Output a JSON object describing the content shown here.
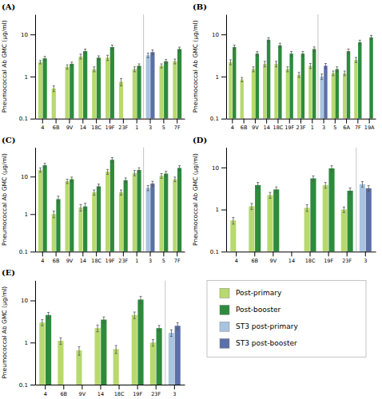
{
  "chart_data": [
    {
      "type": "bar",
      "title": "(A)",
      "ylabel": "Pneumococcal Ab GMC (μg/ml)",
      "log": "y",
      "categories": [
        "4",
        "6B",
        "9V",
        "14",
        "18C",
        "19F",
        "23F",
        "1",
        "3",
        "5",
        "7F"
      ],
      "series": [
        {
          "name": "Post-primary",
          "color": "#b8d96e",
          "values": [
            2.2,
            0.52,
            1.7,
            3.0,
            1.5,
            2.8,
            0.75,
            1.5,
            null,
            1.8,
            2.3
          ],
          "errors": [
            0.2,
            0.08,
            0.2,
            0.4,
            0.2,
            0.4,
            0.15,
            0.2,
            null,
            0.2,
            0.3
          ]
        },
        {
          "name": "Post-booster",
          "color": "#2d8b3c",
          "values": [
            2.7,
            null,
            2.0,
            4.0,
            2.8,
            5.0,
            null,
            1.8,
            null,
            2.3,
            4.5
          ],
          "errors": [
            0.3,
            null,
            0.2,
            0.5,
            0.3,
            0.6,
            null,
            0.2,
            null,
            0.25,
            0.5
          ]
        },
        {
          "name": "ST3 post-primary",
          "color": "#a8c4e0",
          "values": [
            null,
            null,
            null,
            null,
            null,
            null,
            null,
            null,
            3.2,
            null,
            null
          ],
          "errors": [
            null,
            null,
            null,
            null,
            null,
            null,
            null,
            null,
            0.4,
            null,
            null
          ]
        },
        {
          "name": "ST3 post-booster",
          "color": "#5b6fa8",
          "values": [
            null,
            null,
            null,
            null,
            null,
            null,
            null,
            null,
            3.8,
            null,
            null
          ],
          "errors": [
            null,
            null,
            null,
            null,
            null,
            null,
            null,
            null,
            0.5,
            null,
            null
          ]
        }
      ],
      "ylim": [
        0.1,
        30
      ],
      "yticks": [
        0.1,
        1,
        10
      ]
    },
    {
      "type": "bar",
      "title": "(B)",
      "ylabel": "Pneumococcal Ab GMC (μg/ml)",
      "log": "y",
      "categories": [
        "4",
        "6B",
        "9V",
        "14",
        "18C",
        "19F",
        "23F",
        "1",
        "3",
        "5",
        "6A",
        "7F",
        "19A"
      ],
      "series": [
        {
          "name": "Post-primary",
          "color": "#b8d96e",
          "values": [
            2.2,
            0.85,
            1.5,
            2.0,
            2.0,
            1.5,
            1.1,
            1.8,
            null,
            1.2,
            1.2,
            2.5,
            null
          ],
          "errors": [
            0.3,
            0.1,
            0.2,
            0.3,
            0.3,
            0.2,
            0.15,
            0.25,
            null,
            0.15,
            0.15,
            0.35,
            null
          ]
        },
        {
          "name": "Post-booster",
          "color": "#2d8b3c",
          "values": [
            5.0,
            null,
            3.5,
            7.5,
            5.5,
            3.5,
            3.5,
            4.5,
            null,
            1.5,
            4.0,
            6.5,
            8.5
          ],
          "errors": [
            0.6,
            null,
            0.4,
            0.9,
            0.7,
            0.45,
            0.45,
            0.55,
            null,
            0.2,
            0.5,
            0.8,
            1.0
          ]
        },
        {
          "name": "ST3 post-primary",
          "color": "#a8c4e0",
          "values": [
            null,
            null,
            null,
            null,
            null,
            null,
            null,
            null,
            1.0,
            null,
            null,
            null,
            null
          ],
          "errors": [
            null,
            null,
            null,
            null,
            null,
            null,
            null,
            null,
            0.15,
            null,
            null,
            null,
            null
          ]
        },
        {
          "name": "ST3 post-booster",
          "color": "#5b6fa8",
          "values": [
            null,
            null,
            null,
            null,
            null,
            null,
            null,
            null,
            1.8,
            null,
            null,
            null,
            null
          ],
          "errors": [
            null,
            null,
            null,
            null,
            null,
            null,
            null,
            null,
            0.25,
            null,
            null,
            null,
            null
          ]
        }
      ],
      "ylim": [
        0.1,
        30
      ],
      "yticks": [
        0.1,
        1,
        10
      ]
    },
    {
      "type": "bar",
      "title": "(C)",
      "ylabel": "Pneumococcal Ab GMC (μg/ml)",
      "log": "y",
      "categories": [
        "4",
        "6B",
        "9V",
        "14",
        "18C",
        "19F",
        "23F",
        "1",
        "3",
        "5",
        "7F"
      ],
      "series": [
        {
          "name": "Post-primary",
          "color": "#b8d96e",
          "values": [
            15.0,
            1.0,
            7.5,
            1.5,
            3.8,
            13.5,
            3.8,
            12.5,
            null,
            10.5,
            8.5
          ],
          "errors": [
            2.0,
            0.2,
            1.0,
            0.3,
            0.6,
            2.0,
            0.6,
            2.0,
            null,
            1.5,
            1.2
          ]
        },
        {
          "name": "Post-booster",
          "color": "#2d8b3c",
          "values": [
            20.0,
            2.5,
            8.5,
            1.6,
            5.5,
            28.0,
            8.0,
            15.0,
            null,
            12.0,
            17.0
          ],
          "errors": [
            2.5,
            0.5,
            1.2,
            0.35,
            0.8,
            4.0,
            1.2,
            2.2,
            null,
            1.8,
            2.5
          ]
        },
        {
          "name": "ST3 post-primary",
          "color": "#a8c4e0",
          "values": [
            null,
            null,
            null,
            null,
            null,
            null,
            null,
            null,
            5.0,
            null,
            null
          ],
          "errors": [
            null,
            null,
            null,
            null,
            null,
            null,
            null,
            null,
            0.8,
            null,
            null
          ]
        },
        {
          "name": "ST3 post-booster",
          "color": "#5b6fa8",
          "values": [
            null,
            null,
            null,
            null,
            null,
            null,
            null,
            null,
            6.5,
            null,
            null
          ],
          "errors": [
            null,
            null,
            null,
            null,
            null,
            null,
            null,
            null,
            1.0,
            null,
            null
          ]
        }
      ],
      "ylim": [
        0.1,
        60
      ],
      "yticks": [
        0.1,
        1,
        10
      ]
    },
    {
      "type": "bar",
      "title": "(D)",
      "ylabel": "Pneumococcal Ab GMC (μg/ml)",
      "log": "y",
      "categories": [
        "4",
        "6B",
        "9V",
        "14",
        "18C",
        "19F",
        "23F",
        "3"
      ],
      "series": [
        {
          "name": "Post-primary",
          "color": "#b8d96e",
          "values": [
            0.55,
            1.2,
            2.2,
            null,
            1.1,
            3.8,
            1.0,
            null
          ],
          "errors": [
            0.1,
            0.2,
            0.35,
            null,
            0.2,
            0.6,
            0.15,
            null
          ]
        },
        {
          "name": "Post-booster",
          "color": "#2d8b3c",
          "values": [
            null,
            3.8,
            3.0,
            null,
            5.5,
            9.5,
            2.8,
            null
          ],
          "errors": [
            null,
            0.6,
            0.45,
            null,
            0.8,
            1.5,
            0.45,
            null
          ]
        },
        {
          "name": "ST3 post-primary",
          "color": "#a8c4e0",
          "values": [
            null,
            null,
            null,
            null,
            null,
            null,
            null,
            4.0
          ],
          "errors": [
            null,
            null,
            null,
            null,
            null,
            null,
            null,
            0.6
          ]
        },
        {
          "name": "ST3 post-booster",
          "color": "#5b6fa8",
          "values": [
            null,
            null,
            null,
            null,
            null,
            null,
            null,
            3.2
          ],
          "errors": [
            null,
            null,
            null,
            null,
            null,
            null,
            null,
            0.5
          ]
        }
      ],
      "ylim": [
        0.1,
        30
      ],
      "yticks": [
        0.1,
        1,
        10
      ]
    },
    {
      "type": "bar",
      "title": "(E)",
      "ylabel": "Pneumococcal Ab GMC (μg/ml)",
      "log": "y",
      "categories": [
        "4",
        "6B",
        "9V",
        "14",
        "18C",
        "19F",
        "23F",
        "3"
      ],
      "series": [
        {
          "name": "Post-primary",
          "color": "#b8d96e",
          "values": [
            3.0,
            1.1,
            0.65,
            2.2,
            0.7,
            4.5,
            1.0,
            null
          ],
          "errors": [
            0.5,
            0.2,
            0.15,
            0.4,
            0.15,
            0.8,
            0.18,
            null
          ]
        },
        {
          "name": "Post-booster",
          "color": "#2d8b3c",
          "values": [
            4.5,
            null,
            null,
            3.5,
            null,
            10.5,
            2.2,
            null
          ],
          "errors": [
            0.7,
            null,
            null,
            0.55,
            null,
            2.0,
            0.35,
            null
          ]
        },
        {
          "name": "ST3 post-primary",
          "color": "#a8c4e0",
          "values": [
            null,
            null,
            null,
            null,
            null,
            null,
            null,
            1.7
          ],
          "errors": [
            null,
            null,
            null,
            null,
            null,
            null,
            null,
            0.3
          ]
        },
        {
          "name": "ST3 post-booster",
          "color": "#5b6fa8",
          "values": [
            null,
            null,
            null,
            null,
            null,
            null,
            null,
            2.5
          ],
          "errors": [
            null,
            null,
            null,
            null,
            null,
            null,
            null,
            0.45
          ]
        }
      ],
      "ylim": [
        0.1,
        30
      ],
      "yticks": [
        0.1,
        1,
        10
      ]
    }
  ]
}
